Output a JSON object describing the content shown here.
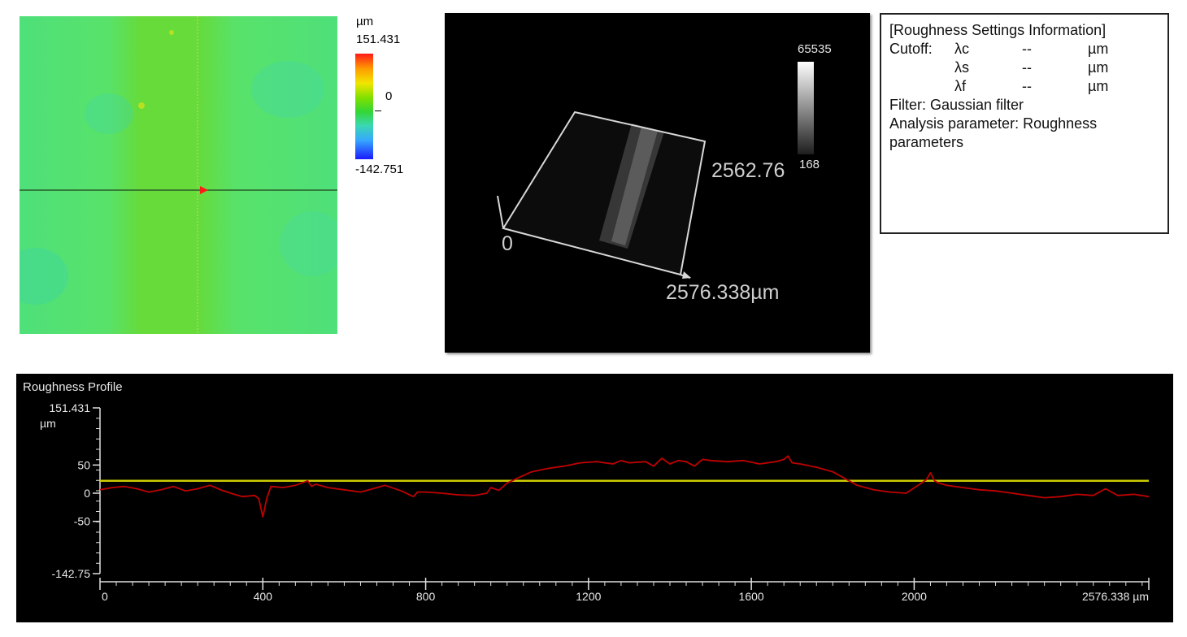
{
  "height_map": {
    "colorbar": {
      "unit": "µm",
      "max": "151.431",
      "mid": "0",
      "min": "-142.751"
    }
  },
  "view_3d": {
    "x_extent_label": "2576.338µm",
    "y_extent_label": "2562.76",
    "origin_label": "0",
    "gray_max": "65535",
    "gray_min": "168"
  },
  "roughness_settings": {
    "title": "[Roughness Settings Information]",
    "cutoff_label": "Cutoff:",
    "rows": [
      {
        "param": "λc",
        "value": "--",
        "unit": "µm"
      },
      {
        "param": "λs",
        "value": "--",
        "unit": "µm"
      },
      {
        "param": "λf",
        "value": "--",
        "unit": "µm"
      }
    ],
    "filter": "Filter: Gaussian filter",
    "analysis_line1": "Analysis parameter: Roughness",
    "analysis_line2": "parameters"
  },
  "chart_data": {
    "type": "line",
    "title": "Roughness Profile",
    "xlabel": "µm",
    "ylabel": "µm",
    "xlim": [
      0,
      2576.338
    ],
    "ylim": [
      -142.75,
      151.431
    ],
    "x_ticks": [
      "0",
      "400",
      "800",
      "1200",
      "1600",
      "2000",
      "2576.338 µm"
    ],
    "x_tick_values": [
      0,
      400,
      800,
      1200,
      1600,
      2000,
      2576.338
    ],
    "y_ticks": [
      "151.431",
      "50",
      "0",
      "-50",
      "-142.75"
    ],
    "y_tick_values": [
      151.431,
      50,
      0,
      -50,
      -142.75
    ],
    "y_unit_label": "µm",
    "mean_line": {
      "value": 22,
      "color": "#cccc00"
    },
    "series": [
      {
        "color": "#c00000",
        "x": [
          0,
          30,
          60,
          90,
          120,
          150,
          180,
          210,
          240,
          270,
          300,
          330,
          350,
          380,
          390,
          400,
          410,
          420,
          450,
          480,
          510,
          520,
          530,
          560,
          600,
          640,
          670,
          700,
          740,
          770,
          780,
          800,
          840,
          880,
          920,
          950,
          960,
          980,
          1000,
          1030,
          1060,
          1100,
          1140,
          1180,
          1220,
          1260,
          1280,
          1300,
          1340,
          1360,
          1380,
          1400,
          1420,
          1440,
          1460,
          1480,
          1500,
          1540,
          1580,
          1620,
          1660,
          1680,
          1690,
          1700,
          1720,
          1760,
          1800,
          1830,
          1860,
          1900,
          1940,
          1980,
          2010,
          2030,
          2040,
          2050,
          2060,
          2080,
          2120,
          2160,
          2200,
          2240,
          2280,
          2320,
          2360,
          2400,
          2440,
          2470,
          2500,
          2540,
          2576.338
        ],
        "y": [
          6,
          10,
          12,
          8,
          2,
          6,
          12,
          4,
          8,
          14,
          5,
          -2,
          -6,
          -4,
          -10,
          -42,
          -8,
          12,
          10,
          14,
          22,
          12,
          16,
          10,
          6,
          2,
          8,
          14,
          4,
          -6,
          2,
          2,
          0,
          -3,
          -4,
          0,
          10,
          5,
          18,
          28,
          38,
          44,
          48,
          54,
          56,
          52,
          58,
          54,
          56,
          48,
          62,
          52,
          58,
          56,
          48,
          60,
          58,
          56,
          58,
          52,
          56,
          60,
          66,
          54,
          52,
          46,
          38,
          26,
          14,
          6,
          2,
          0,
          14,
          24,
          36,
          22,
          18,
          14,
          10,
          6,
          4,
          0,
          -4,
          -8,
          -6,
          -2,
          -4,
          8,
          -4,
          -2,
          -6
        ]
      }
    ]
  }
}
